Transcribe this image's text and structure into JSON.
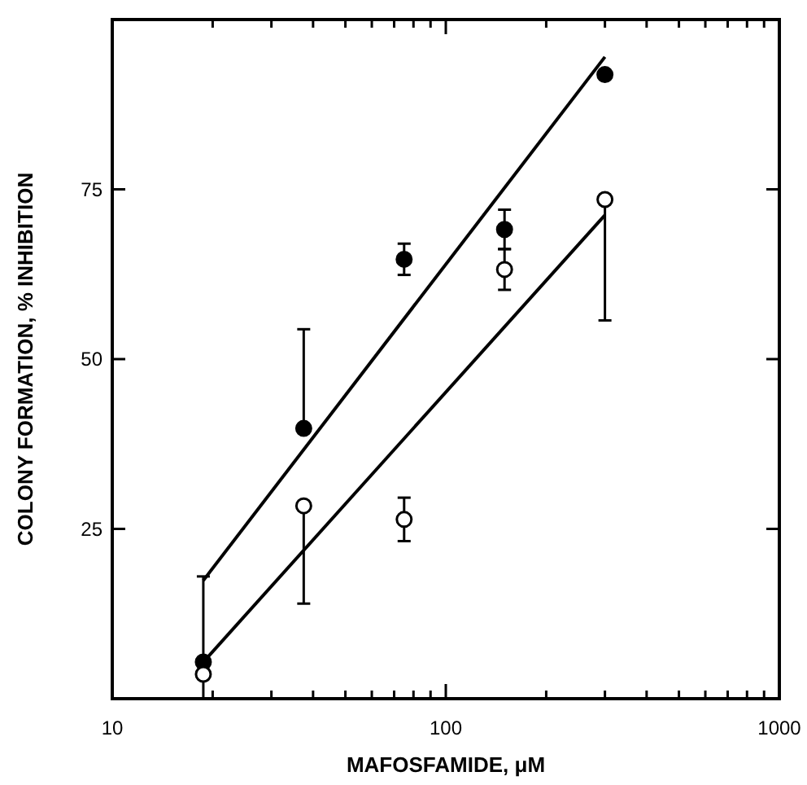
{
  "chart_data": {
    "type": "scatter",
    "xlabel": "MAFOSFAMIDE, μM",
    "ylabel": "COLONY FORMATION, % INHIBITION",
    "log": "x",
    "grid": false,
    "marker": "circle",
    "xlim": [
      10,
      1000
    ],
    "xticks": [
      10,
      {
        "value": 20,
        "label": null
      },
      {
        "value": 30,
        "label": null
      },
      {
        "value": 40,
        "label": null
      },
      {
        "value": 50,
        "label": null
      },
      {
        "value": 60,
        "label": null
      },
      {
        "value": 70,
        "label": null
      },
      {
        "value": 80,
        "label": null
      },
      {
        "value": 90,
        "label": null
      },
      100,
      {
        "value": 200,
        "label": null
      },
      {
        "value": 300,
        "label": null
      },
      {
        "value": 400,
        "label": null
      },
      {
        "value": 500,
        "label": null
      },
      {
        "value": 600,
        "label": null
      },
      {
        "value": 700,
        "label": null
      },
      {
        "value": 800,
        "label": null
      },
      {
        "value": 900,
        "label": null
      },
      1000
    ],
    "ylim": [
      0,
      100
    ],
    "yticks": [
      {
        "value": 0,
        "label": null
      },
      25,
      50,
      75,
      {
        "value": 100,
        "label": null
      }
    ],
    "series": [
      {
        "color": "#000000",
        "x": [
          18.75,
          37.5,
          75,
          150,
          300
        ],
        "values": [
          5.4,
          39.8,
          64.7,
          69.1,
          91.9
        ],
        "errors": [
          [
            5.4,
            18
          ],
          [
            39.8,
            54.4
          ],
          2.3,
          2.9,
          null
        ]
      },
      {
        "color": "#000000",
        "x": [
          18.75,
          37.5,
          75,
          150,
          300
        ],
        "values": [
          3.6,
          28.4,
          26.4,
          63.2,
          73.5
        ],
        "errors": [
          [
            0,
            3.6
          ],
          [
            14,
            28.4
          ],
          3.2,
          3,
          [
            55.7,
            73.5
          ]
        ]
      },
      {
        "type": "line",
        "color": "#000000",
        "marker": "none",
        "x": [
          18.75,
          300
        ],
        "values": [
          17.4,
          94.5
        ]
      },
      {
        "type": "line",
        "color": "#000000",
        "marker": "none",
        "x": [
          18.75,
          300
        ],
        "values": [
          5.4,
          71.2
        ]
      }
    ]
  }
}
